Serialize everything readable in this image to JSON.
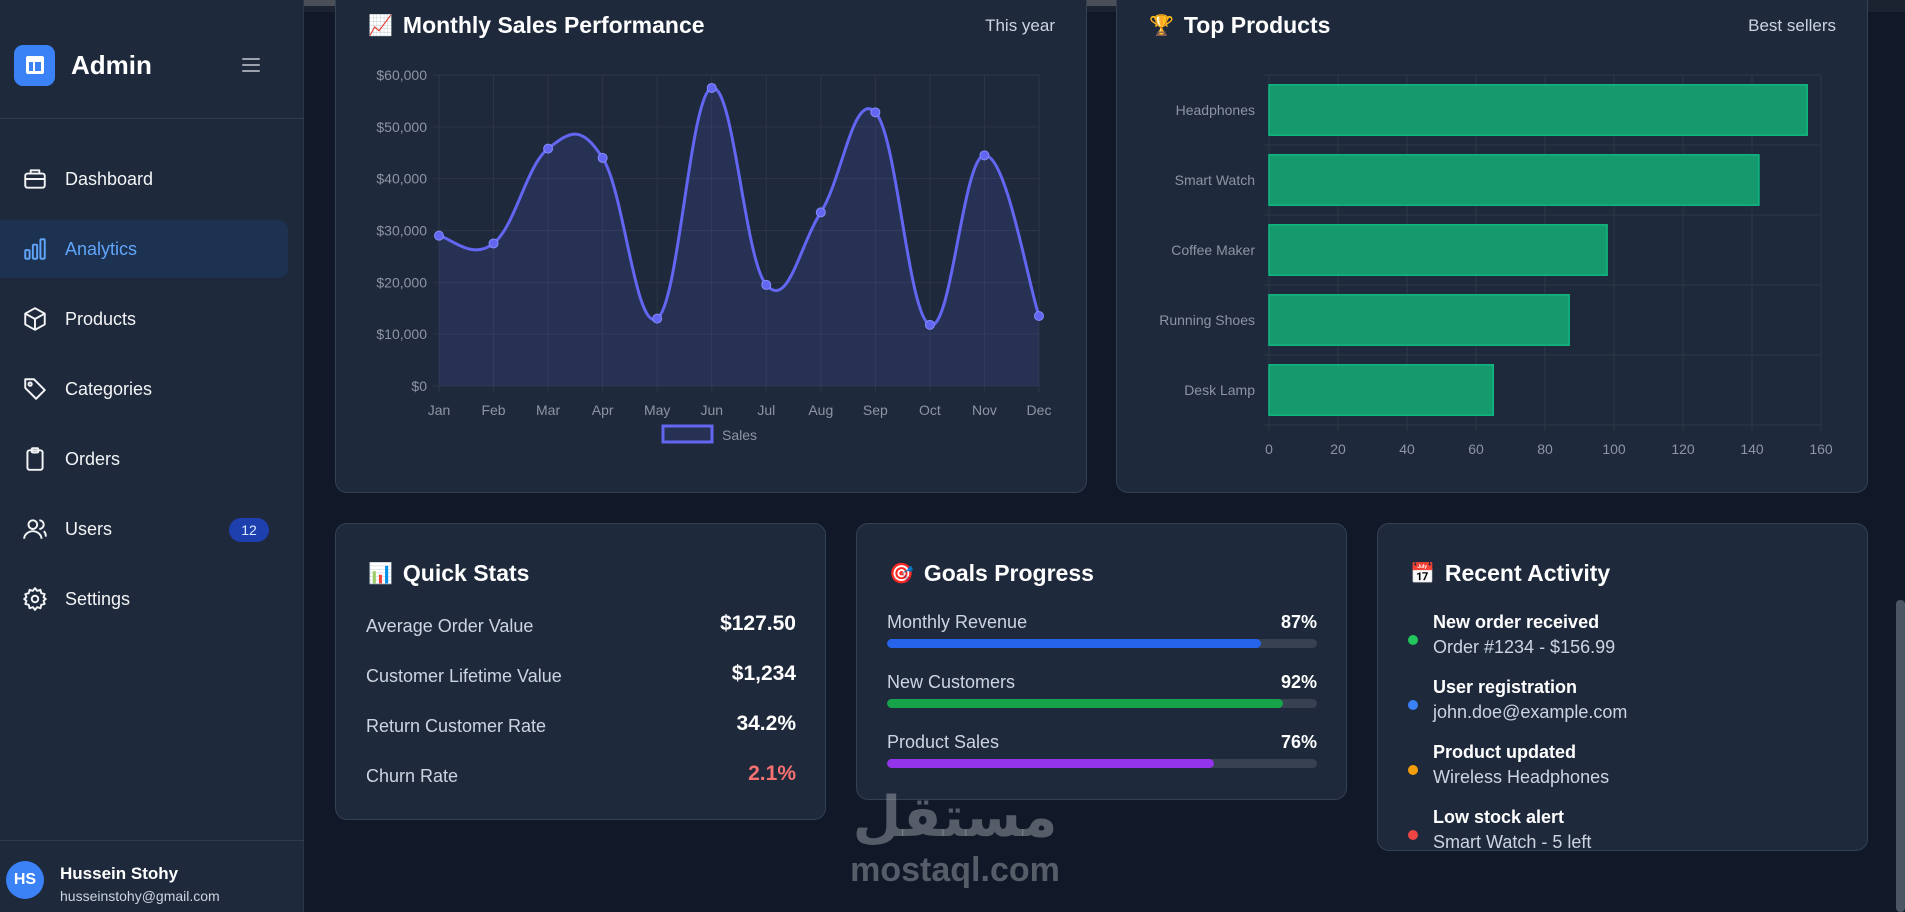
{
  "app": {
    "title": "Admin"
  },
  "sidebar": {
    "items": [
      {
        "label": "Dashboard",
        "icon": "briefcase-icon"
      },
      {
        "label": "Analytics",
        "icon": "bar-chart-icon",
        "active": true
      },
      {
        "label": "Products",
        "icon": "box-icon"
      },
      {
        "label": "Categories",
        "icon": "tag-icon"
      },
      {
        "label": "Orders",
        "icon": "clipboard-icon"
      },
      {
        "label": "Users",
        "icon": "users-icon",
        "badge": "12"
      },
      {
        "label": "Settings",
        "icon": "gear-icon"
      }
    ]
  },
  "user": {
    "initials": "HS",
    "name": "Hussein Stohy",
    "email": "husseinstohy@gmail.com"
  },
  "sales_card": {
    "emoji": "📈",
    "title": "Monthly Sales Performance",
    "subtitle": "This year"
  },
  "products_card": {
    "emoji": "🏆",
    "title": "Top Products",
    "subtitle": "Best sellers"
  },
  "chart_data": [
    {
      "type": "line",
      "title": "Monthly Sales Performance",
      "categories": [
        "Jan",
        "Feb",
        "Mar",
        "Apr",
        "May",
        "Jun",
        "Jul",
        "Aug",
        "Sep",
        "Oct",
        "Nov",
        "Dec"
      ],
      "series": [
        {
          "name": "Sales",
          "values": [
            29000,
            27500,
            45800,
            44000,
            13000,
            57500,
            19500,
            33500,
            52800,
            11800,
            44500,
            13500
          ]
        }
      ],
      "ylim": [
        0,
        60000
      ],
      "yticks": [
        "$0",
        "$10,000",
        "$20,000",
        "$30,000",
        "$40,000",
        "$50,000",
        "$60,000"
      ],
      "legend": "bottom",
      "color": "#6366f1"
    },
    {
      "type": "bar",
      "orientation": "horizontal",
      "title": "Top Products",
      "categories": [
        "Headphones",
        "Smart Watch",
        "Coffee Maker",
        "Running Shoes",
        "Desk Lamp"
      ],
      "values": [
        156,
        142,
        98,
        87,
        65
      ],
      "xlim": [
        0,
        160
      ],
      "xticks": [
        "0",
        "20",
        "40",
        "60",
        "80",
        "100",
        "120",
        "140",
        "160"
      ],
      "color": "#10b981"
    }
  ],
  "quick_stats": {
    "emoji": "📊",
    "title": "Quick Stats",
    "rows": [
      {
        "label": "Average Order Value",
        "value": "$127.50"
      },
      {
        "label": "Customer Lifetime Value",
        "value": "$1,234"
      },
      {
        "label": "Return Customer Rate",
        "value": "34.2%"
      },
      {
        "label": "Churn Rate",
        "value": "2.1%"
      }
    ]
  },
  "goals": {
    "emoji": "🎯",
    "title": "Goals Progress",
    "items": [
      {
        "label": "Monthly Revenue",
        "pct": "87%",
        "value": 0.87,
        "color": "#2563eb"
      },
      {
        "label": "New Customers",
        "pct": "92%",
        "value": 0.92,
        "color": "#16a34a"
      },
      {
        "label": "Product Sales",
        "pct": "76%",
        "value": 0.76,
        "color": "#9333ea"
      }
    ]
  },
  "activity": {
    "emoji": "📅",
    "title": "Recent Activity",
    "items": [
      {
        "title": "New order received",
        "desc": "Order #1234 - $156.99",
        "color": "#22c55e"
      },
      {
        "title": "User registration",
        "desc": "john.doe@example.com",
        "color": "#3b82f6"
      },
      {
        "title": "Product updated",
        "desc": "Wireless Headphones",
        "color": "#f59e0b"
      },
      {
        "title": "Low stock alert",
        "desc": "Smart Watch - 5 left",
        "color": "#ef4444"
      }
    ]
  },
  "watermark": {
    "arabic": "مستقل",
    "latin": "mostaql.com"
  }
}
